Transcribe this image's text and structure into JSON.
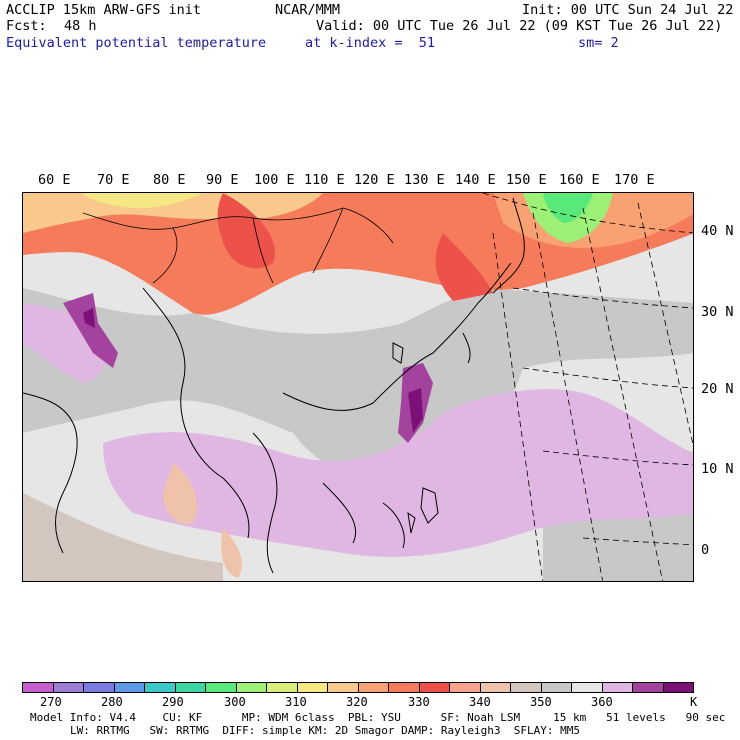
{
  "header": {
    "model": "ACCLIP 15km ARW-GFS init",
    "org": "NCAR/MMM",
    "init": "Init: 00 UTC Sun 24 Jul 22",
    "fcst_label": "Fcst:",
    "fcst_value": "48 h",
    "valid": "Valid: 00 UTC Tue 26 Jul 22 (09 KST Tue 26 Jul 22)",
    "field": "Equivalent potential temperature",
    "level": "at k-index =  51",
    "smooth": "sm= 2"
  },
  "map": {
    "longitude_labels": [
      "60 E",
      "70 E",
      "80 E",
      "90 E",
      "100 E",
      "110 E",
      "120 E",
      "130 E",
      "140 E",
      "150 E",
      "160 E",
      "170 E"
    ],
    "latitude_labels": [
      "40 N",
      "30 N",
      "20 N",
      "10 N",
      "0"
    ],
    "region": "Asia / Western Pacific",
    "variable": "theta-e",
    "units": "K"
  },
  "colorbar": {
    "units": "K",
    "colors": [
      "#c75fcf",
      "#9f7fd6",
      "#7b7be0",
      "#5e9ae8",
      "#3cc8c8",
      "#3ed6a0",
      "#59e87a",
      "#9cf075",
      "#d8f07a",
      "#f5e784",
      "#f9c98c",
      "#f8a274",
      "#f67b5a",
      "#ec524a",
      "#f6a28c",
      "#efc2aa",
      "#d2c6be",
      "#c8c8c8",
      "#e6e6e6",
      "#e0b6e2",
      "#a4439e",
      "#7a1078"
    ],
    "tick_labels": [
      "270",
      "280",
      "290",
      "300",
      "310",
      "320",
      "330",
      "340",
      "350",
      "360",
      "K"
    ]
  },
  "footer": {
    "line1": "Model Info: V4.4    CU: KF      MP: WDM 6class  PBL: YSU      SF: Noah LSM     15 km   51 levels   90 sec",
    "line2": "LW: RRTMG   SW: RRTMG  DIFF: simple KM: 2D Smagor DAMP: Rayleigh3  SFLAY: MM5"
  }
}
